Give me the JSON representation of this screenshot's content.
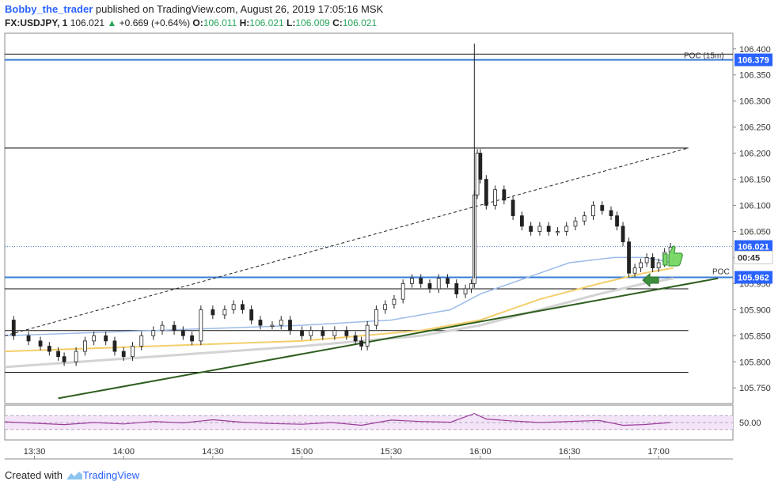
{
  "header": {
    "author": "Bobby_the_trader",
    "publish_text": "published on TradingView.com, August 26, 2019 17:05:16 MSK",
    "symbol": "FX:USDJPY, 1",
    "last": "106.021",
    "change": "+0.669 (+0.64%)",
    "o_label": "O:",
    "o": "106.011",
    "h_label": "H:",
    "h": "106.021",
    "l_label": "L:",
    "l": "106.009",
    "c_label": "C:",
    "c": "106.021"
  },
  "footer": {
    "created_with": "Created with",
    "brand": "TradingView"
  },
  "colors": {
    "up": "#26a65b",
    "blue_line": "#3a7bd5",
    "ma_blue": "#9cbbe9",
    "ma_yellow": "#f3ce6b",
    "ma_grey": "#d3d3d3",
    "trend": "#2e5e1e",
    "rsi": "#9b3c9b",
    "rsi_bg": "#f3e4f7",
    "badge_blue": "#2962ff"
  },
  "chart_data": {
    "type": "candlestick",
    "symbol": "USDJPY",
    "interval": "1",
    "ylim": [
      105.72,
      106.43
    ],
    "y_ticks": [
      105.75,
      105.8,
      105.85,
      105.9,
      105.95,
      106.0,
      106.05,
      106.1,
      106.15,
      106.2,
      106.25,
      106.3,
      106.35,
      106.4
    ],
    "x_ticks": [
      "13:30",
      "14:00",
      "14:30",
      "15:00",
      "15:30",
      "16:00",
      "16:30",
      "17:00"
    ],
    "x_tick_minutes": [
      810,
      840,
      870,
      900,
      930,
      960,
      990,
      1020
    ],
    "xlim_minutes": [
      800,
      1045
    ],
    "close_path": [
      [
        800,
        105.88
      ],
      [
        803,
        105.85
      ],
      [
        808,
        105.84
      ],
      [
        812,
        105.83
      ],
      [
        815,
        105.82
      ],
      [
        818,
        105.81
      ],
      [
        820,
        105.8
      ],
      [
        824,
        105.82
      ],
      [
        827,
        105.84
      ],
      [
        830,
        105.85
      ],
      [
        834,
        105.84
      ],
      [
        837,
        105.82
      ],
      [
        840,
        105.81
      ],
      [
        843,
        105.83
      ],
      [
        846,
        105.85
      ],
      [
        850,
        105.86
      ],
      [
        853,
        105.87
      ],
      [
        857,
        105.86
      ],
      [
        860,
        105.85
      ],
      [
        863,
        105.84
      ],
      [
        866,
        105.9
      ],
      [
        870,
        105.89
      ],
      [
        874,
        105.9
      ],
      [
        877,
        105.91
      ],
      [
        880,
        105.9
      ],
      [
        883,
        105.88
      ],
      [
        886,
        105.87
      ],
      [
        890,
        105.87
      ],
      [
        893,
        105.88
      ],
      [
        896,
        105.86
      ],
      [
        900,
        105.85
      ],
      [
        903,
        105.86
      ],
      [
        907,
        105.85
      ],
      [
        911,
        105.86
      ],
      [
        915,
        105.85
      ],
      [
        918,
        105.84
      ],
      [
        920,
        105.83
      ],
      [
        922,
        105.87
      ],
      [
        925,
        105.9
      ],
      [
        928,
        105.91
      ],
      [
        931,
        105.92
      ],
      [
        934,
        105.95
      ],
      [
        937,
        105.96
      ],
      [
        940,
        105.95
      ],
      [
        943,
        105.94
      ],
      [
        946,
        105.96
      ],
      [
        949,
        105.95
      ],
      [
        952,
        105.93
      ],
      [
        955,
        105.94
      ],
      [
        957,
        105.95
      ],
      [
        958,
        106.12
      ],
      [
        959,
        106.2
      ],
      [
        960,
        106.15
      ],
      [
        962,
        106.1
      ],
      [
        965,
        106.13
      ],
      [
        968,
        106.11
      ],
      [
        971,
        106.08
      ],
      [
        974,
        106.06
      ],
      [
        977,
        106.05
      ],
      [
        980,
        106.06
      ],
      [
        983,
        106.05
      ],
      [
        986,
        106.05
      ],
      [
        989,
        106.06
      ],
      [
        992,
        106.07
      ],
      [
        995,
        106.08
      ],
      [
        998,
        106.1
      ],
      [
        1001,
        106.09
      ],
      [
        1004,
        106.08
      ],
      [
        1006,
        106.06
      ],
      [
        1008,
        106.03
      ],
      [
        1010,
        105.97
      ],
      [
        1012,
        105.98
      ],
      [
        1014,
        105.99
      ],
      [
        1016,
        106.0
      ],
      [
        1018,
        105.98
      ],
      [
        1020,
        105.99
      ],
      [
        1022,
        106.01
      ],
      [
        1024,
        106.02
      ]
    ],
    "spike": {
      "time_minutes": 958,
      "high": 106.41,
      "low": 105.96
    },
    "horizontal_lines": [
      106.39,
      106.379,
      106.21,
      105.94,
      105.86,
      105.78,
      105.962
    ],
    "poc_labels": [
      "POC (15m)",
      "POC"
    ],
    "price_badges": [
      {
        "label": "106.379",
        "value": 106.379
      },
      {
        "label": "106.021",
        "value": 106.021
      },
      {
        "label": "00:45",
        "value": 106.0
      },
      {
        "label": "105.962",
        "value": 105.962
      }
    ],
    "trendline_support": [
      [
        818,
        105.73
      ],
      [
        1040,
        105.96
      ]
    ],
    "trendline_resistance_dashed": [
      [
        800,
        105.85
      ],
      [
        1030,
        106.21
      ]
    ],
    "ma_fast": [
      [
        800,
        105.85
      ],
      [
        850,
        105.86
      ],
      [
        900,
        105.87
      ],
      [
        930,
        105.88
      ],
      [
        950,
        105.9
      ],
      [
        960,
        105.93
      ],
      [
        975,
        105.96
      ],
      [
        990,
        105.99
      ],
      [
        1005,
        106.0
      ],
      [
        1015,
        106.0
      ],
      [
        1025,
        105.99
      ]
    ],
    "ma_mid": [
      [
        800,
        105.82
      ],
      [
        850,
        105.83
      ],
      [
        900,
        105.84
      ],
      [
        940,
        105.86
      ],
      [
        960,
        105.88
      ],
      [
        980,
        105.92
      ],
      [
        1000,
        105.95
      ],
      [
        1015,
        105.97
      ],
      [
        1025,
        105.98
      ]
    ],
    "ma_slow": [
      [
        800,
        105.79
      ],
      [
        850,
        105.81
      ],
      [
        900,
        105.83
      ],
      [
        940,
        105.85
      ],
      [
        960,
        105.87
      ],
      [
        980,
        105.9
      ],
      [
        1000,
        105.93
      ],
      [
        1015,
        105.95
      ],
      [
        1025,
        105.96
      ]
    ],
    "rsi": {
      "tick_label": "50.00",
      "levels": [
        30,
        50,
        70
      ],
      "values": [
        [
          800,
          52
        ],
        [
          810,
          48
        ],
        [
          820,
          44
        ],
        [
          830,
          50
        ],
        [
          840,
          46
        ],
        [
          850,
          53
        ],
        [
          860,
          49
        ],
        [
          870,
          58
        ],
        [
          880,
          51
        ],
        [
          890,
          47
        ],
        [
          900,
          45
        ],
        [
          910,
          50
        ],
        [
          920,
          42
        ],
        [
          930,
          57
        ],
        [
          940,
          53
        ],
        [
          950,
          51
        ],
        [
          958,
          76
        ],
        [
          962,
          60
        ],
        [
          970,
          55
        ],
        [
          980,
          50
        ],
        [
          990,
          53
        ],
        [
          1000,
          56
        ],
        [
          1008,
          42
        ],
        [
          1015,
          44
        ],
        [
          1024,
          50
        ]
      ]
    }
  }
}
